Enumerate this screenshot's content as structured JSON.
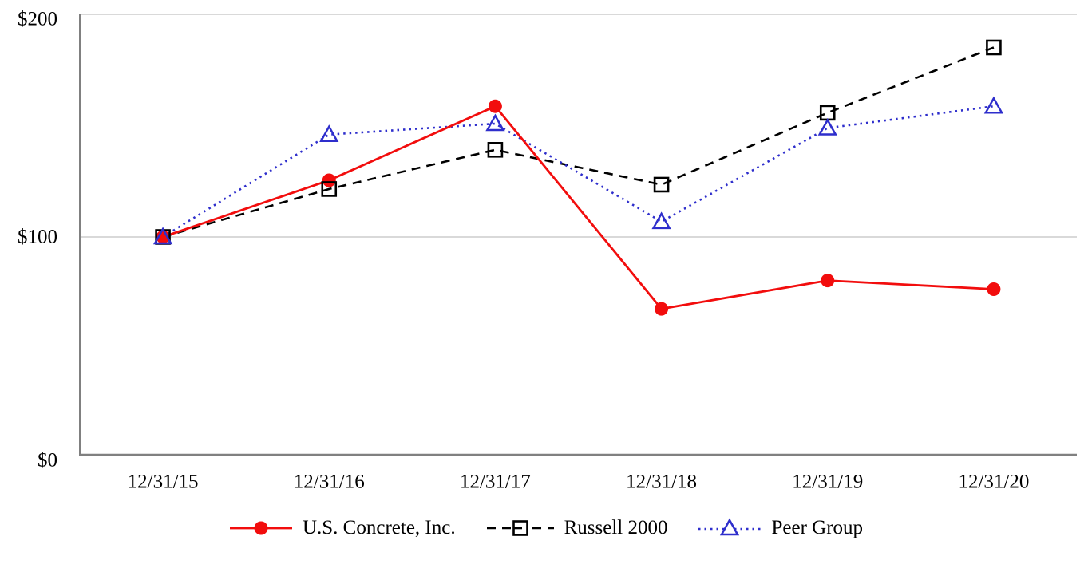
{
  "chart_data": {
    "type": "line",
    "title": "",
    "categories": [
      "12/31/15",
      "12/31/16",
      "12/31/17",
      "12/31/18",
      "12/31/19",
      "12/31/20"
    ],
    "series": [
      {
        "name": "U.S. Concrete, Inc.",
        "color": "#f20d0d",
        "line_style": "solid",
        "marker": "filled-circle",
        "values": [
          100,
          126,
          160,
          67,
          80,
          76
        ]
      },
      {
        "name": "Russell 2000",
        "color": "#000000",
        "line_style": "dashed",
        "marker": "open-square",
        "values": [
          100,
          122,
          140,
          124,
          157,
          187
        ]
      },
      {
        "name": "Peer Group",
        "color": "#2e2ecc",
        "line_style": "dotted",
        "marker": "open-triangle",
        "values": [
          100,
          147,
          152,
          107,
          150,
          160
        ]
      }
    ],
    "y_ticks": [
      {
        "value": 0,
        "label": "$0"
      },
      {
        "value": 100,
        "label": "$100"
      },
      {
        "value": 200,
        "label": "$200"
      }
    ],
    "ylim": [
      0,
      200
    ],
    "xlabel": "",
    "ylabel": "",
    "grid": "single horizontal gridline at $100",
    "legend_position": "bottom-center",
    "axis_color": "#808080",
    "gridline_color": "#d9d9d9",
    "text_color": "#000000"
  }
}
